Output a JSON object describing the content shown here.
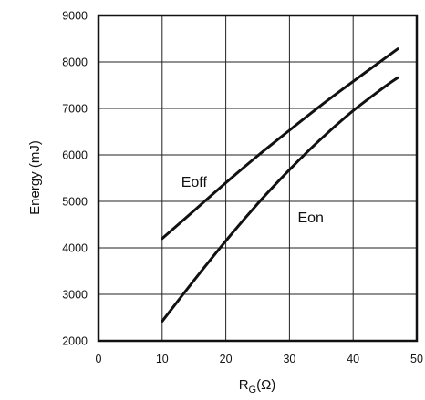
{
  "chart_data": {
    "type": "line",
    "xlabel": "R",
    "xlabel_subscript": "G",
    "xlabel_unit": "(Ω)",
    "ylabel": "Energy (mJ)",
    "xlim": [
      0,
      50
    ],
    "ylim": [
      2000,
      9000
    ],
    "xticks": [
      0,
      10,
      20,
      30,
      40,
      50
    ],
    "yticks": [
      2000,
      3000,
      4000,
      5000,
      6000,
      7000,
      8000,
      9000
    ],
    "grid": true,
    "legend": "none",
    "series": [
      {
        "name": "Eoff",
        "x": [
          10,
          15,
          20,
          25,
          30,
          35,
          40,
          45,
          47
        ],
        "y": [
          4200,
          4800,
          5400,
          5980,
          6530,
          7070,
          7580,
          8080,
          8280
        ]
      },
      {
        "name": "Eon",
        "x": [
          10,
          15,
          20,
          25,
          30,
          35,
          40,
          45,
          47
        ],
        "y": [
          2420,
          3300,
          4150,
          4950,
          5680,
          6350,
          6950,
          7470,
          7660
        ]
      }
    ]
  }
}
